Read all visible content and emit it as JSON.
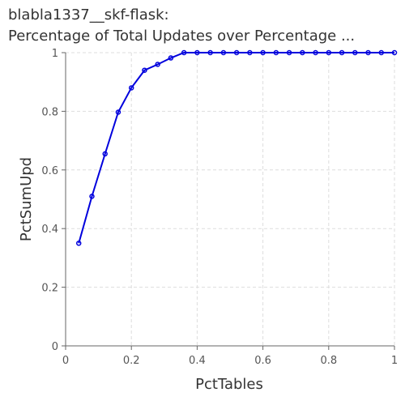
{
  "chart_data": {
    "type": "line",
    "title_line1": "blabla1337__skf-flask:",
    "title_line2": "Percentage of Total Updates over Percentage ...",
    "xlabel": "PctTables",
    "ylabel": "PctSumUpd",
    "xlim": [
      0,
      1
    ],
    "ylim": [
      0,
      1
    ],
    "x_ticks": [
      "0",
      "0.2",
      "0.4",
      "0.6",
      "0.8",
      "1"
    ],
    "y_ticks": [
      "0",
      "0.2",
      "0.4",
      "0.6",
      "0.8",
      "1"
    ],
    "grid": true,
    "line_color": "#0000dd",
    "series": [
      {
        "x": [
          0.04,
          0.08,
          0.12,
          0.16,
          0.2,
          0.24,
          0.28,
          0.32,
          0.36,
          0.4,
          0.44,
          0.48,
          0.52,
          0.56,
          0.6,
          0.64,
          0.68,
          0.72,
          0.76,
          0.8,
          0.84,
          0.88,
          0.92,
          0.96,
          1.0
        ],
        "y": [
          0.35,
          0.51,
          0.655,
          0.797,
          0.88,
          0.94,
          0.96,
          0.982,
          1,
          1,
          1,
          1,
          1,
          1,
          1,
          1,
          1,
          1,
          1,
          1,
          1,
          1,
          1,
          1,
          1
        ]
      }
    ]
  }
}
